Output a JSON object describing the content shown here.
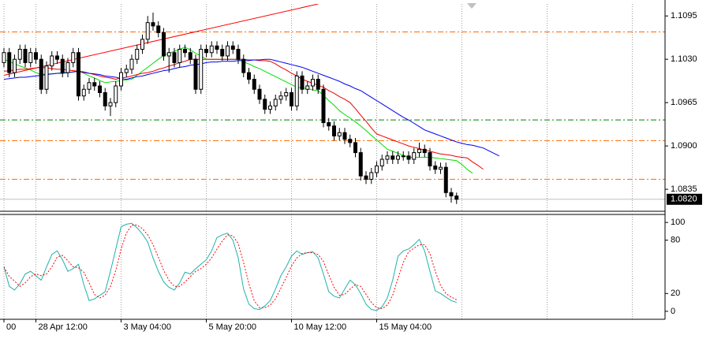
{
  "chart_data": [
    {
      "type": "candlestick",
      "categories": [
        "00",
        null,
        null,
        null,
        null,
        null,
        "28 Apr 12:00",
        null,
        null,
        null,
        null,
        null,
        null,
        null,
        null,
        null,
        null,
        null,
        null,
        null,
        null,
        null,
        "3 May 04:00",
        null,
        null,
        null,
        null,
        null,
        null,
        null,
        null,
        null,
        null,
        null,
        null,
        null,
        null,
        null,
        "5 May 20:00",
        null,
        null,
        null,
        null,
        null,
        null,
        null,
        null,
        null,
        null,
        null,
        null,
        null,
        null,
        null,
        "10 May 12:00",
        null,
        null,
        null,
        null,
        null,
        null,
        null,
        null,
        null,
        null,
        null,
        null,
        null,
        null,
        null,
        "15 May 04:00",
        null,
        null,
        null,
        null,
        null,
        null,
        null,
        null,
        null,
        null,
        null,
        null,
        null,
        null,
        null,
        null,
        null,
        null,
        null,
        null,
        null,
        null,
        null
      ],
      "open": [
        1.1025,
        1.104,
        1.101,
        1.103,
        1.1045,
        1.1025,
        1.104,
        1.103,
        1.0985,
        1.102,
        1.1035,
        1.103,
        1.101,
        1.1025,
        1.104,
        1.0975,
        1.0985,
        1.0995,
        1.099,
        1.098,
        1.096,
        1.0965,
        1.099,
        1.101,
        1.1015,
        1.103,
        1.1045,
        1.106,
        1.1085,
        1.108,
        1.107,
        1.1035,
        1.104,
        1.1025,
        1.1045,
        1.104,
        1.103,
        1.0985,
        1.1045,
        1.104,
        1.105,
        1.1045,
        1.1035,
        1.105,
        1.1045,
        1.103,
        1.101,
        1.1,
        1.0985,
        1.097,
        1.0955,
        1.096,
        1.097,
        1.0975,
        1.098,
        1.096,
        1.1005,
        1.0985,
        1.099,
        1.1,
        1.0985,
        1.0935,
        1.093,
        1.0915,
        1.092,
        1.091,
        1.0905,
        1.089,
        1.0855,
        1.085,
        1.086,
        1.087,
        1.088,
        1.0885,
        1.088,
        1.0885,
        1.0885,
        1.088,
        1.089,
        1.0895,
        1.089,
        1.087,
        1.0865,
        1.0868,
        1.083,
        1.0825,
        null,
        null,
        null,
        null,
        null,
        null,
        null,
        null
      ],
      "high": [
        1.1047,
        1.1047,
        1.1037,
        1.1052,
        1.1052,
        1.1047,
        1.1047,
        1.1037,
        1.1027,
        1.1042,
        1.1042,
        1.1037,
        1.1032,
        1.1047,
        1.1047,
        1.0992,
        1.1002,
        1.1002,
        1.0997,
        1.0987,
        1.0972,
        1.0997,
        1.1017,
        1.1022,
        1.1037,
        1.1052,
        1.1067,
        1.1095,
        1.11,
        1.1087,
        1.1077,
        1.1047,
        1.1047,
        1.1052,
        1.1052,
        1.1047,
        1.1037,
        1.1052,
        1.1052,
        1.1057,
        1.1057,
        1.1052,
        1.1057,
        1.1057,
        1.1052,
        1.1037,
        1.1017,
        1.1007,
        1.0992,
        1.0977,
        1.0967,
        1.0977,
        1.0982,
        1.0987,
        1.0987,
        1.1012,
        1.1012,
        1.0997,
        1.1007,
        1.1007,
        1.0992,
        1.0942,
        1.0937,
        1.0927,
        1.0927,
        1.0917,
        1.0912,
        1.0897,
        1.0862,
        1.0867,
        1.0877,
        1.0887,
        1.0892,
        1.0892,
        1.0892,
        1.0892,
        1.0892,
        1.0897,
        1.0905,
        1.0902,
        1.0897,
        1.0877,
        1.0875,
        1.0875,
        1.0837,
        1.083,
        null,
        null,
        null,
        null,
        null,
        null,
        null,
        null
      ],
      "low": [
        1.1018,
        1.1003,
        1.1003,
        1.1023,
        1.1018,
        1.1018,
        1.1023,
        1.0978,
        1.0978,
        1.1013,
        1.1023,
        1.1003,
        1.1003,
        1.1018,
        1.0968,
        1.0968,
        1.0978,
        1.0983,
        1.0973,
        1.0953,
        1.0945,
        1.0958,
        1.0983,
        1.1003,
        1.1008,
        1.1023,
        1.1038,
        1.1053,
        1.1073,
        1.1063,
        1.1028,
        1.101,
        1.1018,
        1.1018,
        1.1033,
        1.1023,
        1.0978,
        1.0978,
        1.1033,
        1.1033,
        1.1038,
        1.1028,
        1.1028,
        1.1038,
        1.1023,
        1.1003,
        1.0993,
        1.0978,
        1.0963,
        1.0948,
        1.0948,
        1.0953,
        1.0963,
        1.0968,
        1.0953,
        1.0953,
        1.0978,
        1.0978,
        1.0983,
        1.0978,
        1.0928,
        1.0923,
        1.0908,
        1.0908,
        1.0903,
        1.0898,
        1.0883,
        1.0848,
        1.0843,
        1.0843,
        1.0853,
        1.0863,
        1.0873,
        1.0873,
        1.0873,
        1.0878,
        1.0873,
        1.0873,
        1.0883,
        1.0883,
        1.0863,
        1.0858,
        1.0858,
        1.0823,
        1.0815,
        1.0813,
        null,
        null,
        null,
        null,
        null,
        null,
        null,
        null
      ],
      "close": [
        1.104,
        1.101,
        1.103,
        1.1045,
        1.1025,
        1.104,
        1.103,
        1.0985,
        1.102,
        1.1035,
        1.103,
        1.101,
        1.1025,
        1.104,
        1.0975,
        1.0985,
        1.0995,
        1.099,
        1.098,
        1.096,
        1.0965,
        1.099,
        1.101,
        1.1015,
        1.103,
        1.1045,
        1.106,
        1.1085,
        1.108,
        1.107,
        1.1035,
        1.104,
        1.1025,
        1.1045,
        1.104,
        1.103,
        1.0985,
        1.1045,
        1.104,
        1.105,
        1.1045,
        1.1035,
        1.105,
        1.1045,
        1.103,
        1.101,
        1.1,
        1.0985,
        1.097,
        1.0955,
        1.096,
        1.097,
        1.0975,
        1.098,
        1.096,
        1.1005,
        1.0985,
        1.099,
        1.1,
        1.0985,
        1.0935,
        1.093,
        1.0915,
        1.092,
        1.091,
        1.0905,
        1.089,
        1.0855,
        1.085,
        1.086,
        1.087,
        1.088,
        1.0885,
        1.088,
        1.0885,
        1.0885,
        1.088,
        1.089,
        1.0895,
        1.089,
        1.087,
        1.0865,
        1.0868,
        1.083,
        1.0825,
        1.082,
        null,
        null,
        null,
        null,
        null,
        null,
        null,
        null
      ],
      "lines": [
        {
          "color": "#00dd00",
          "values": [
            1.103,
            1.1027,
            1.1023,
            1.102,
            1.1017,
            1.1014,
            1.101,
            1.1007,
            1.1008,
            1.1008,
            1.1009,
            1.101,
            1.101,
            1.1011,
            1.1012,
            1.1009,
            1.1005,
            1.1002,
            1.0998,
            1.0995,
            1.0996,
            1.0997,
            1.0998,
            1.0999,
            1.1,
            1.1006,
            1.1012,
            1.1018,
            1.1024,
            1.103,
            1.1036,
            1.1039,
            1.1042,
            1.1045,
            1.1048,
            1.1044,
            1.1039,
            1.1035,
            1.103,
            1.103,
            1.103,
            1.103,
            1.103,
            1.103,
            1.103,
            1.1026,
            1.1023,
            1.1019,
            1.1016,
            1.1012,
            1.1008,
            1.1004,
            1.1,
            1.0996,
            1.0992,
            1.0988,
            1.0987,
            1.0986,
            1.0984,
            1.0983,
            1.0976,
            1.0968,
            1.0961,
            1.0953,
            1.0947,
            1.0942,
            1.0936,
            1.093,
            1.0923,
            1.0916,
            1.0909,
            1.0902,
            1.0895,
            1.0892,
            1.0889,
            1.0886,
            1.0883,
            1.0883,
            1.0883,
            1.0883,
            1.0883,
            1.0882,
            1.0881,
            1.088,
            1.0879,
            1.0878,
            1.0872,
            1.0865,
            1.0859,
            null,
            null,
            null,
            null,
            null
          ]
        },
        {
          "color": "#ee0000",
          "values": [
            1.1012,
            1.1013,
            1.1014,
            1.1015,
            1.1015,
            1.1016,
            1.1017,
            1.1018,
            1.1017,
            1.1016,
            1.1015,
            1.1015,
            1.1014,
            1.1013,
            1.1012,
            1.101,
            1.1009,
            1.1007,
            1.1005,
            1.1003,
            1.1002,
            1.1,
            1.1002,
            1.1003,
            1.1005,
            1.1007,
            1.1009,
            1.101,
            1.1012,
            1.1015,
            1.1017,
            1.102,
            1.1022,
            1.1025,
            1.1027,
            1.103,
            1.103,
            1.103,
            1.103,
            1.103,
            1.103,
            1.103,
            1.103,
            1.103,
            1.103,
            1.103,
            1.1029,
            1.1029,
            1.1028,
            1.1028,
            1.1027,
            1.1023,
            1.1018,
            1.1014,
            1.1009,
            1.1005,
            1.1,
            1.0997,
            1.0994,
            1.0991,
            1.0988,
            1.0983,
            1.0979,
            1.0974,
            1.097,
            1.0965,
            1.0956,
            1.0946,
            1.0937,
            1.0927,
            1.0918,
            1.0915,
            1.0912,
            1.0909,
            1.0906,
            1.0903,
            1.09,
            1.0898,
            1.0896,
            1.0894,
            1.0892,
            1.089,
            1.0888,
            1.0887,
            1.0886,
            1.0884,
            1.0883,
            1.0882,
            1.0876,
            1.0871,
            1.0865,
            null,
            null,
            null
          ]
        },
        {
          "color": "#0000ee",
          "values": [
            1.1,
            1.1001,
            1.1002,
            1.1003,
            1.1003,
            1.1004,
            1.1005,
            1.1006,
            1.1007,
            1.1008,
            1.1009,
            1.1009,
            1.101,
            1.1011,
            1.1012,
            1.1011,
            1.1009,
            1.1008,
            1.1007,
            1.1005,
            1.1004,
            1.1003,
            1.1001,
            1.1,
            1.1002,
            1.1004,
            1.1005,
            1.1007,
            1.1009,
            1.1011,
            1.1013,
            1.1014,
            1.1016,
            1.1018,
            1.1019,
            1.1021,
            1.1022,
            1.1023,
            1.1025,
            1.1026,
            1.1026,
            1.1027,
            1.1027,
            1.1027,
            1.1028,
            1.1028,
            1.1028,
            1.1029,
            1.1029,
            1.103,
            1.103,
            1.1028,
            1.1026,
            1.1024,
            1.1022,
            1.102,
            1.1018,
            1.1015,
            1.1012,
            1.1009,
            1.1006,
            1.1003,
            1.1,
            1.0997,
            1.0993,
            1.099,
            1.0986,
            1.0983,
            1.0978,
            1.0973,
            1.0968,
            1.0963,
            1.0958,
            1.0953,
            1.0948,
            1.0943,
            1.0939,
            1.0934,
            1.0929,
            1.0924,
            1.0921,
            1.0918,
            1.0915,
            1.0912,
            1.0909,
            1.0906,
            1.0904,
            1.0902,
            1.0901,
            1.0899,
            1.0897,
            1.0893,
            1.0889,
            1.0885
          ]
        }
      ],
      "levels": [
        {
          "value": 1.1071,
          "color": "#ff6a00"
        },
        {
          "value": 1.0939,
          "color": "#008000"
        },
        {
          "value": 1.0908,
          "color": "#ff6a00"
        },
        {
          "value": 1.085,
          "color": "#ff6a00"
        }
      ],
      "trendline": {
        "color": "#ff0000",
        "x": [
          0,
          59
        ],
        "values": [
          1.1006,
          1.1113
        ]
      },
      "last_price": {
        "value": 1.082,
        "label": "1.0820"
      },
      "ylim": [
        1.0802,
        1.1113
      ],
      "yticks": [
        1.1095,
        {
          "value": 1.103,
          "label": "1.1030"
        },
        1.0965,
        {
          "value": 1.09,
          "label": "1.0900"
        },
        1.0835
      ]
    },
    {
      "type": "line",
      "series": [
        {
          "color": "#20b2aa",
          "values": [
            50,
            28,
            24,
            31,
            42,
            45,
            40,
            35,
            50,
            64,
            68,
            58,
            45,
            48,
            53,
            30,
            12,
            14,
            18,
            22,
            45,
            70,
            95,
            98,
            99,
            94,
            87,
            78,
            60,
            45,
            33,
            27,
            24,
            32,
            44,
            42,
            48,
            53,
            58,
            68,
            83,
            86,
            88,
            80,
            60,
            25,
            8,
            3,
            2,
            6,
            12,
            25,
            40,
            50,
            62,
            68,
            64,
            66,
            67,
            60,
            42,
            22,
            17,
            15,
            25,
            35,
            30,
            20,
            8,
            2,
            1,
            5,
            15,
            35,
            62,
            68,
            70,
            75,
            81,
            68,
            45,
            23,
            20,
            16,
            12,
            10
          ]
        },
        {
          "color": "#ff0000",
          "dashed": true,
          "values": [
            50,
            39,
            34,
            28,
            32,
            39,
            42,
            40,
            42,
            50,
            61,
            63,
            57,
            50,
            49,
            44,
            32,
            19,
            15,
            18,
            28,
            46,
            70,
            88,
            97,
            97,
            93,
            86,
            75,
            61,
            46,
            35,
            28,
            28,
            33,
            39,
            45,
            48,
            53,
            60,
            70,
            79,
            86,
            85,
            76,
            55,
            31,
            12,
            4,
            4,
            7,
            14,
            26,
            38,
            51,
            60,
            65,
            66,
            66,
            64,
            56,
            41,
            27,
            18,
            19,
            25,
            30,
            28,
            19,
            10,
            4,
            3,
            7,
            18,
            37,
            55,
            67,
            71,
            75,
            75,
            65,
            45,
            29,
            20,
            16,
            13
          ]
        }
      ],
      "ylim": [
        -9,
        109
      ],
      "yticks": [
        0,
        20,
        80,
        100
      ]
    }
  ]
}
